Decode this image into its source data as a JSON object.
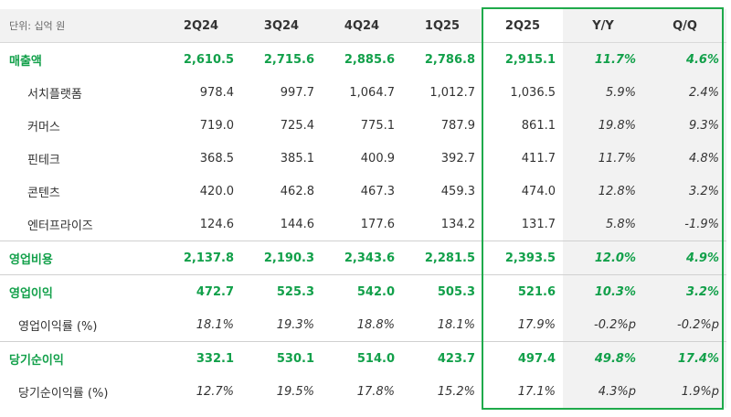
{
  "header": {
    "unit": "단위: 십억 원",
    "columns": [
      "2Q24",
      "3Q24",
      "4Q24",
      "1Q25",
      "2Q25",
      "Y/Y",
      "Q/Q"
    ]
  },
  "rows": [
    {
      "label": "매출액",
      "values": [
        "2,610.5",
        "2,715.6",
        "2,885.6",
        "2,786.8",
        "2,915.1",
        "11.7%",
        "4.6%"
      ]
    },
    {
      "label": "서치플랫폼",
      "values": [
        "978.4",
        "997.7",
        "1,064.7",
        "1,012.7",
        "1,036.5",
        "5.9%",
        "2.4%"
      ]
    },
    {
      "label": "커머스",
      "values": [
        "719.0",
        "725.4",
        "775.1",
        "787.9",
        "861.1",
        "19.8%",
        "9.3%"
      ]
    },
    {
      "label": "핀테크",
      "values": [
        "368.5",
        "385.1",
        "400.9",
        "392.7",
        "411.7",
        "11.7%",
        "4.8%"
      ]
    },
    {
      "label": "콘텐츠",
      "values": [
        "420.0",
        "462.8",
        "467.3",
        "459.3",
        "474.0",
        "12.8%",
        "3.2%"
      ]
    },
    {
      "label": "엔터프라이즈",
      "values": [
        "124.6",
        "144.6",
        "177.6",
        "134.2",
        "131.7",
        "5.8%",
        "-1.9%"
      ]
    },
    {
      "label": "영업비용",
      "values": [
        "2,137.8",
        "2,190.3",
        "2,343.6",
        "2,281.5",
        "2,393.5",
        "12.0%",
        "4.9%"
      ]
    },
    {
      "label": "영업이익",
      "values": [
        "472.7",
        "525.3",
        "542.0",
        "505.3",
        "521.6",
        "10.3%",
        "3.2%"
      ]
    },
    {
      "label": "영업이익률 (%)",
      "values": [
        "18.1%",
        "19.3%",
        "18.8%",
        "18.1%",
        "17.9%",
        "-0.2%p",
        "-0.2%p"
      ]
    },
    {
      "label": "당기순이익",
      "values": [
        "332.1",
        "530.1",
        "514.0",
        "423.7",
        "497.4",
        "49.8%",
        "17.4%"
      ]
    },
    {
      "label": "당기순이익률 (%)",
      "values": [
        "12.7%",
        "19.5%",
        "17.8%",
        "15.2%",
        "17.1%",
        "4.3%p",
        "1.9%p"
      ]
    }
  ],
  "accent_color": "#12a04a",
  "highlight_color": "#1faa4b"
}
